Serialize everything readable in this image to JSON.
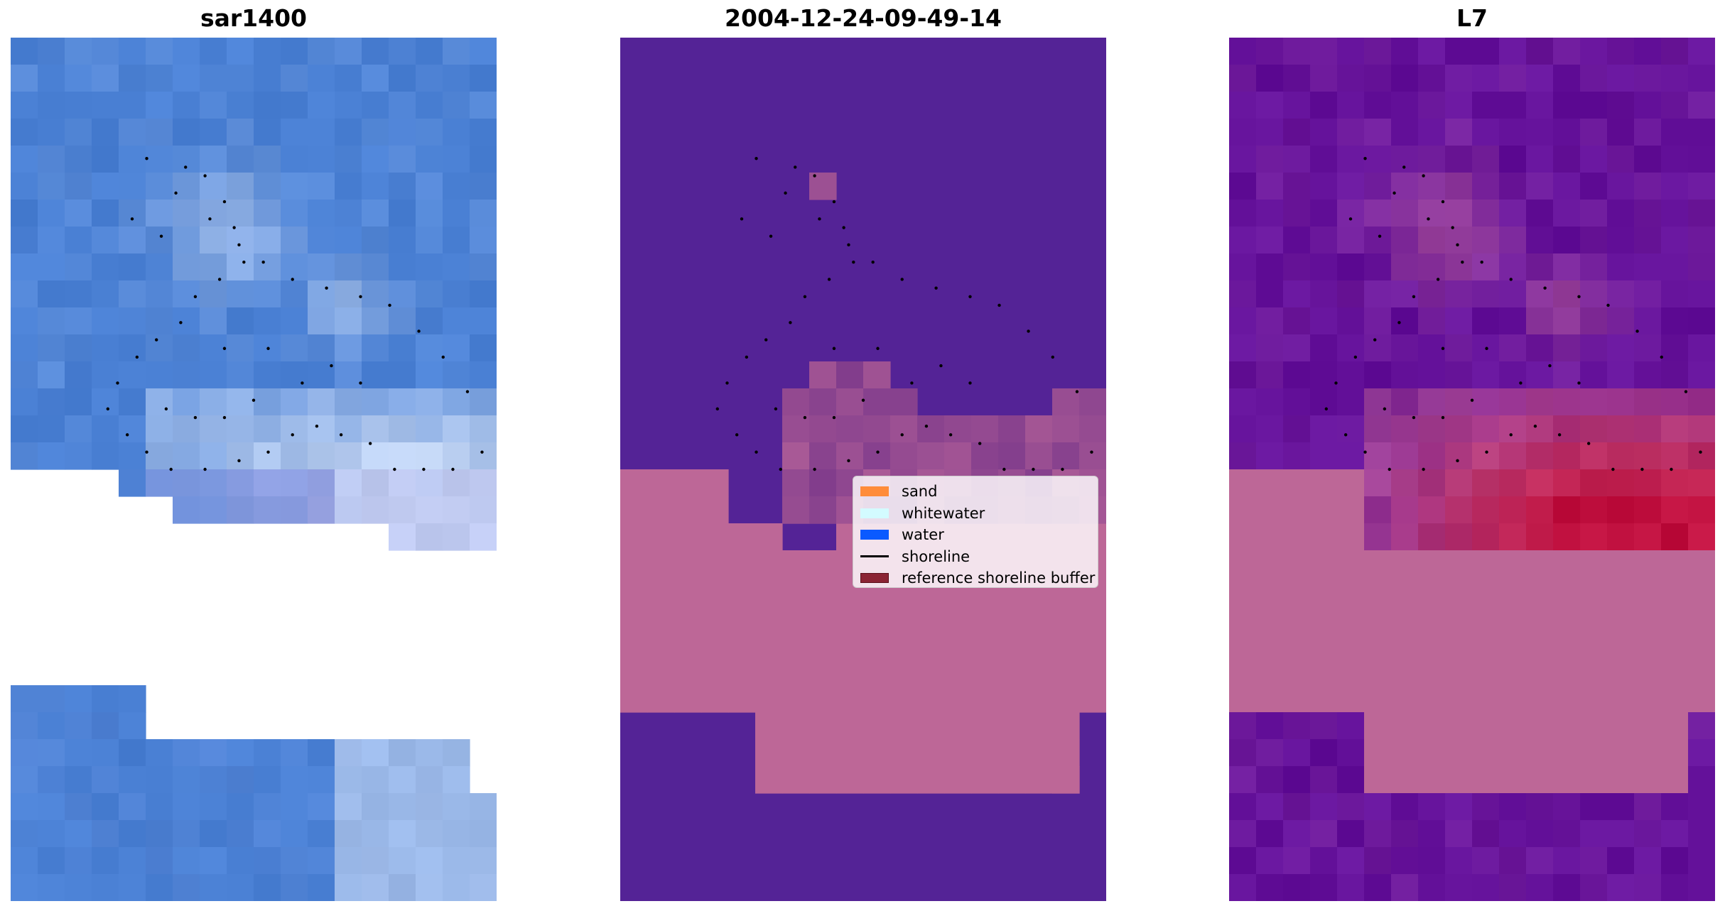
{
  "panels": [
    {
      "id": "rgb",
      "title": "sar1400"
    },
    {
      "id": "classified",
      "title": "2004-12-24-09-49-14"
    },
    {
      "id": "index",
      "title": "L7"
    }
  ],
  "legend": {
    "items": [
      {
        "label": "sand",
        "color": "#ff8c3a",
        "kind": "patch"
      },
      {
        "label": "whitewater",
        "color": "#d3fbff",
        "kind": "patch"
      },
      {
        "label": "water",
        "color": "#0a5aff",
        "kind": "patch"
      },
      {
        "label": "shoreline",
        "color": "#000000",
        "kind": "line"
      },
      {
        "label": "reference shoreline buffer",
        "color": "#8b2434",
        "kind": "patch"
      }
    ]
  },
  "colors": {
    "water_class": "#542396",
    "buffer_overlay": "#bd6797",
    "sea_blue": "#4a80d4",
    "index_purple": "#64119a",
    "index_red": "#c0103f"
  }
}
